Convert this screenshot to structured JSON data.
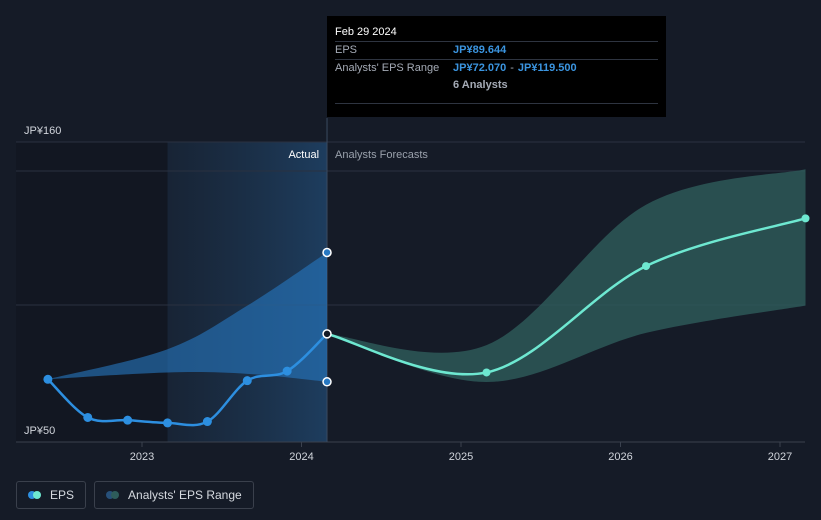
{
  "colors": {
    "background": "#151b27",
    "actual_line": "#2d8fe0",
    "actual_band": "#2778c2",
    "forecast_line": "#6ee8d1",
    "forecast_band": "#2e5c5b",
    "tooltip_bg": "#000000"
  },
  "tooltip": {
    "date": "Feb 29 2024",
    "eps_label": "EPS",
    "eps_value": "JP¥89.644",
    "range_label": "Analysts' EPS Range",
    "range_low": "JP¥72.070",
    "range_sep": "-",
    "range_high": "JP¥119.500",
    "analysts": "6 Analysts"
  },
  "legend": {
    "eps": "EPS",
    "range": "Analysts' EPS Range"
  },
  "chart_data": {
    "type": "line",
    "title": "",
    "xlabel": "",
    "ylabel": "",
    "region_labels": {
      "actual": "Actual",
      "forecast": "Analysts Forecasts"
    },
    "y_ticks": [
      {
        "value": 160,
        "label": "JP¥160"
      },
      {
        "value": 50,
        "label": "JP¥50"
      }
    ],
    "x_ticks": [
      {
        "value": 2023.0,
        "label": "2023"
      },
      {
        "value": 2024.0,
        "label": "2024"
      },
      {
        "value": 2025.0,
        "label": "2025"
      },
      {
        "value": 2026.0,
        "label": "2026"
      },
      {
        "value": 2027.0,
        "label": "2027"
      }
    ],
    "xlim": [
      2022.8,
      2027.2
    ],
    "ylim": [
      50,
      160
    ],
    "grid": true,
    "legend_position": "bottom-left",
    "actual_start_x": 2023.16,
    "divider_x": 2024.16,
    "series": [
      {
        "name": "EPS",
        "kind": "actual",
        "points": [
          {
            "x": 2022.41,
            "y": 73.0
          },
          {
            "x": 2022.66,
            "y": 59.0
          },
          {
            "x": 2022.91,
            "y": 58.0
          },
          {
            "x": 2023.16,
            "y": 57.0
          },
          {
            "x": 2023.41,
            "y": 57.5
          },
          {
            "x": 2023.66,
            "y": 72.5
          },
          {
            "x": 2023.91,
            "y": 76.0
          },
          {
            "x": 2024.16,
            "y": 89.644
          }
        ]
      },
      {
        "name": "Analysts' EPS Range",
        "kind": "actual_range",
        "upper": [
          {
            "x": 2022.41,
            "y": 73.0
          },
          {
            "x": 2023.16,
            "y": 84.0
          },
          {
            "x": 2023.66,
            "y": 100.0
          },
          {
            "x": 2024.16,
            "y": 119.5
          }
        ],
        "lower": [
          {
            "x": 2022.41,
            "y": 73.0
          },
          {
            "x": 2023.16,
            "y": 75.5
          },
          {
            "x": 2023.66,
            "y": 75.0
          },
          {
            "x": 2024.16,
            "y": 72.07
          }
        ]
      },
      {
        "name": "EPS",
        "kind": "forecast",
        "points": [
          {
            "x": 2024.16,
            "y": 89.644
          },
          {
            "x": 2025.16,
            "y": 75.5
          },
          {
            "x": 2026.16,
            "y": 114.5
          },
          {
            "x": 2027.16,
            "y": 132.0
          }
        ]
      },
      {
        "name": "Analysts' EPS Range",
        "kind": "forecast_range",
        "upper": [
          {
            "x": 2024.16,
            "y": 89.644
          },
          {
            "x": 2025.16,
            "y": 85.5
          },
          {
            "x": 2026.16,
            "y": 137.0
          },
          {
            "x": 2027.16,
            "y": 150.0
          }
        ],
        "lower": [
          {
            "x": 2024.16,
            "y": 89.644
          },
          {
            "x": 2025.16,
            "y": 72.0
          },
          {
            "x": 2026.16,
            "y": 90.0
          },
          {
            "x": 2027.16,
            "y": 100.0
          }
        ]
      }
    ]
  }
}
